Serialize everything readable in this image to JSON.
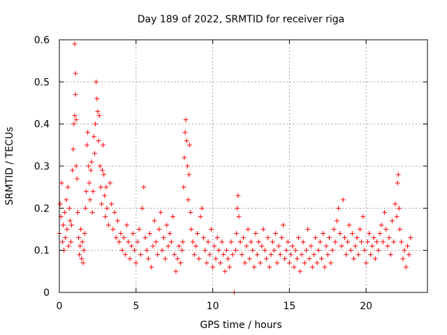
{
  "chart_data": {
    "type": "scatter",
    "title": "Day 189 of 2022, SRMTID for receiver riga",
    "xlabel": "GPS time / hours",
    "ylabel": "SRMTID / TECUs",
    "xlim": [
      0,
      24
    ],
    "ylim": [
      0,
      0.6
    ],
    "xticks": [
      0,
      5,
      10,
      15,
      20
    ],
    "yticks": [
      0,
      0.1,
      0.2,
      0.3,
      0.4,
      0.5,
      0.6
    ],
    "grid": true,
    "marker": "+",
    "color": "#ff0000",
    "series": [
      {
        "name": "SRMTID",
        "x": [
          0.0,
          0.05,
          0.1,
          0.15,
          0.2,
          0.25,
          0.3,
          0.35,
          0.4,
          0.45,
          0.5,
          0.55,
          0.6,
          0.65,
          0.7,
          0.75,
          0.8,
          0.85,
          0.9,
          0.95,
          1.0,
          1.0,
          1.05,
          1.05,
          1.1,
          1.1,
          1.15,
          1.2,
          1.25,
          1.3,
          1.35,
          1.4,
          1.45,
          1.5,
          1.55,
          1.6,
          1.65,
          1.7,
          1.75,
          1.8,
          1.85,
          1.9,
          1.95,
          2.0,
          2.05,
          2.1,
          2.15,
          2.2,
          2.25,
          2.3,
          2.35,
          2.4,
          2.45,
          2.5,
          2.55,
          2.6,
          2.65,
          2.7,
          2.75,
          2.8,
          2.85,
          2.9,
          2.95,
          3.0,
          3.05,
          3.1,
          3.2,
          3.3,
          3.4,
          3.5,
          3.6,
          3.7,
          3.8,
          3.9,
          4.0,
          4.1,
          4.2,
          4.3,
          4.4,
          4.5,
          4.6,
          4.7,
          4.8,
          4.9,
          5.0,
          5.1,
          5.2,
          5.3,
          5.4,
          5.5,
          5.6,
          5.7,
          5.8,
          5.9,
          6.0,
          6.1,
          6.2,
          6.3,
          6.4,
          6.5,
          6.6,
          6.7,
          6.8,
          6.9,
          7.0,
          7.1,
          7.2,
          7.3,
          7.4,
          7.5,
          7.6,
          7.7,
          7.8,
          7.9,
          8.0,
          8.05,
          8.1,
          8.15,
          8.2,
          8.25,
          8.3,
          8.35,
          8.4,
          8.45,
          8.5,
          8.55,
          8.6,
          8.7,
          8.8,
          8.9,
          9.0,
          9.1,
          9.2,
          9.3,
          9.4,
          9.5,
          9.6,
          9.7,
          9.8,
          9.9,
          10.0,
          10.1,
          10.2,
          10.3,
          10.4,
          10.5,
          10.6,
          10.7,
          10.8,
          10.9,
          11.0,
          11.1,
          11.2,
          11.3,
          11.4,
          11.5,
          11.55,
          11.6,
          11.65,
          11.7,
          11.8,
          11.9,
          12.0,
          12.1,
          12.2,
          12.3,
          12.4,
          12.5,
          12.6,
          12.7,
          12.8,
          12.9,
          13.0,
          13.1,
          13.2,
          13.3,
          13.4,
          13.5,
          13.6,
          13.7,
          13.8,
          13.9,
          14.0,
          14.1,
          14.2,
          14.3,
          14.4,
          14.5,
          14.6,
          14.7,
          14.8,
          14.9,
          15.0,
          15.1,
          15.2,
          15.3,
          15.4,
          15.5,
          15.6,
          15.7,
          15.8,
          15.9,
          16.0,
          16.1,
          16.2,
          16.3,
          16.4,
          16.5,
          16.6,
          16.7,
          16.8,
          16.9,
          17.0,
          17.1,
          17.2,
          17.3,
          17.4,
          17.5,
          17.6,
          17.7,
          17.8,
          17.9,
          18.0,
          18.1,
          18.2,
          18.3,
          18.4,
          18.5,
          18.6,
          18.7,
          18.8,
          18.9,
          19.0,
          19.1,
          19.2,
          19.3,
          19.4,
          19.5,
          19.6,
          19.7,
          19.8,
          19.9,
          20.0,
          20.1,
          20.2,
          20.3,
          20.4,
          20.5,
          20.6,
          20.7,
          20.8,
          20.9,
          21.0,
          21.1,
          21.2,
          21.3,
          21.4,
          21.5,
          21.6,
          21.7,
          21.8,
          21.9,
          22.0,
          22.05,
          22.1,
          22.15,
          22.2,
          22.3,
          22.4,
          22.5,
          22.6,
          22.7,
          22.8,
          22.9
        ],
        "y": [
          0.14,
          0.21,
          0.18,
          0.26,
          0.12,
          0.16,
          0.1,
          0.19,
          0.13,
          0.22,
          0.15,
          0.25,
          0.11,
          0.2,
          0.17,
          0.12,
          0.16,
          0.29,
          0.34,
          0.4,
          0.42,
          0.59,
          0.47,
          0.52,
          0.41,
          0.3,
          0.27,
          0.19,
          0.13,
          0.09,
          0.11,
          0.15,
          0.08,
          0.12,
          0.07,
          0.1,
          0.14,
          0.2,
          0.24,
          0.35,
          0.38,
          0.3,
          0.26,
          0.22,
          0.29,
          0.31,
          0.19,
          0.24,
          0.37,
          0.33,
          0.4,
          0.5,
          0.46,
          0.43,
          0.36,
          0.42,
          0.3,
          0.25,
          0.21,
          0.29,
          0.35,
          0.28,
          0.23,
          0.18,
          0.25,
          0.2,
          0.16,
          0.26,
          0.21,
          0.15,
          0.19,
          0.13,
          0.17,
          0.12,
          0.14,
          0.1,
          0.13,
          0.09,
          0.16,
          0.12,
          0.08,
          0.11,
          0.14,
          0.1,
          0.07,
          0.12,
          0.15,
          0.09,
          0.2,
          0.25,
          0.13,
          0.1,
          0.08,
          0.14,
          0.06,
          0.11,
          0.17,
          0.12,
          0.09,
          0.15,
          0.19,
          0.1,
          0.13,
          0.08,
          0.16,
          0.11,
          0.14,
          0.12,
          0.18,
          0.09,
          0.05,
          0.08,
          0.11,
          0.07,
          0.1,
          0.12,
          0.25,
          0.32,
          0.38,
          0.41,
          0.36,
          0.3,
          0.22,
          0.28,
          0.35,
          0.19,
          0.15,
          0.12,
          0.09,
          0.11,
          0.14,
          0.08,
          0.18,
          0.2,
          0.13,
          0.1,
          0.07,
          0.12,
          0.09,
          0.15,
          0.06,
          0.11,
          0.08,
          0.13,
          0.1,
          0.07,
          0.12,
          0.09,
          0.05,
          0.1,
          0.08,
          0.06,
          0.12,
          0.09,
          0.0,
          0.1,
          0.14,
          0.2,
          0.23,
          0.18,
          0.12,
          0.09,
          0.13,
          0.07,
          0.11,
          0.15,
          0.08,
          0.12,
          0.1,
          0.06,
          0.14,
          0.09,
          0.12,
          0.07,
          0.11,
          0.15,
          0.1,
          0.08,
          0.13,
          0.06,
          0.09,
          0.12,
          0.1,
          0.14,
          0.07,
          0.11,
          0.09,
          0.13,
          0.16,
          0.08,
          0.1,
          0.12,
          0.07,
          0.09,
          0.11,
          0.06,
          0.1,
          0.08,
          0.13,
          0.05,
          0.09,
          0.12,
          0.07,
          0.1,
          0.15,
          0.08,
          0.11,
          0.06,
          0.09,
          0.13,
          0.07,
          0.1,
          0.12,
          0.08,
          0.14,
          0.06,
          0.11,
          0.09,
          0.13,
          0.07,
          0.1,
          0.15,
          0.12,
          0.17,
          0.2,
          0.14,
          0.11,
          0.22,
          0.13,
          0.09,
          0.12,
          0.16,
          0.1,
          0.14,
          0.08,
          0.11,
          0.13,
          0.09,
          0.15,
          0.12,
          0.18,
          0.1,
          0.07,
          0.12,
          0.14,
          0.09,
          0.11,
          0.13,
          0.08,
          0.12,
          0.1,
          0.14,
          0.16,
          0.12,
          0.19,
          0.15,
          0.11,
          0.13,
          0.09,
          0.17,
          0.12,
          0.21,
          0.18,
          0.26,
          0.28,
          0.2,
          0.15,
          0.12,
          0.08,
          0.1,
          0.06,
          0.11,
          0.09,
          0.13
        ]
      }
    ]
  }
}
